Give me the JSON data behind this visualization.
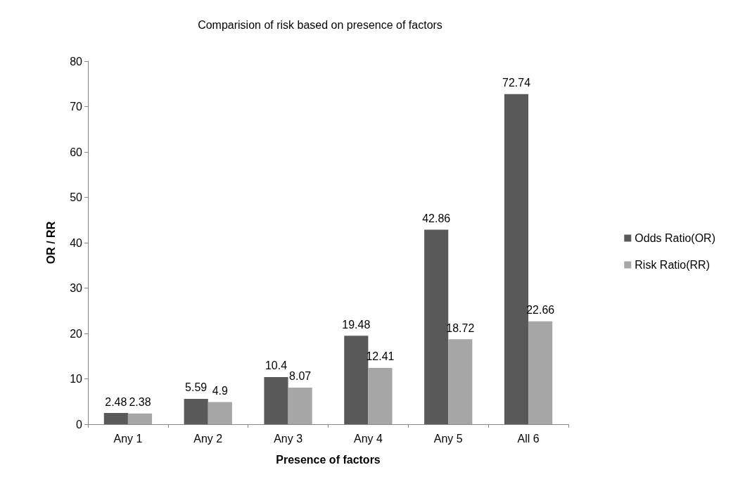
{
  "chart_data": {
    "type": "bar",
    "title": "Comparision of risk based on presence of factors",
    "xlabel": "Presence of factors",
    "ylabel": "OR / RR",
    "categories": [
      "Any 1",
      "Any 2",
      "Any 3",
      "Any 4",
      "Any 5",
      "All 6"
    ],
    "series": [
      {
        "name": "Odds Ratio(OR)",
        "color": "#595959",
        "values": [
          2.48,
          5.59,
          10.4,
          19.48,
          42.86,
          72.74
        ]
      },
      {
        "name": "Risk Ratio(RR)",
        "color": "#a6a6a6",
        "values": [
          2.38,
          4.9,
          8.07,
          12.41,
          18.72,
          22.66
        ]
      }
    ],
    "ylim": [
      0,
      80
    ],
    "yticks": [
      0,
      10,
      20,
      30,
      40,
      50,
      60,
      70,
      80
    ],
    "grid": false,
    "legend": "right",
    "data_labels": true
  }
}
